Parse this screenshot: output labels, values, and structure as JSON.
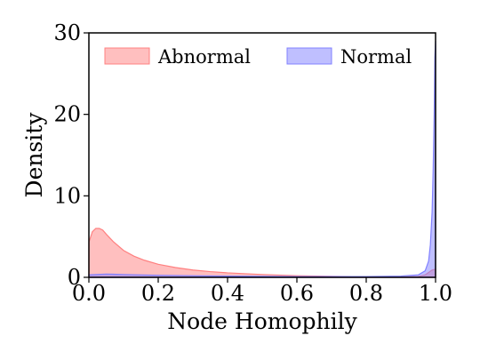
{
  "chart_data": {
    "type": "area",
    "xlabel": "Node Homophily",
    "ylabel": "Density",
    "xlim": [
      0.0,
      1.0
    ],
    "ylim": [
      0,
      30
    ],
    "xticks": [
      "0.0",
      "0.2",
      "0.4",
      "0.6",
      "0.8",
      "1.0"
    ],
    "yticks": [
      "0",
      "10",
      "20",
      "30"
    ],
    "grid": false,
    "legend": "top",
    "series": [
      {
        "name": "Abnormal",
        "color": "#ff8080",
        "x": [
          0.0,
          0.01,
          0.02,
          0.03,
          0.04,
          0.05,
          0.07,
          0.1,
          0.13,
          0.16,
          0.2,
          0.25,
          0.3,
          0.35,
          0.4,
          0.5,
          0.6,
          0.7,
          0.8,
          0.9,
          0.95,
          0.97,
          0.98,
          0.99,
          1.0
        ],
        "y": [
          4.3,
          5.6,
          6.0,
          6.0,
          5.8,
          5.3,
          4.4,
          3.3,
          2.6,
          2.1,
          1.6,
          1.2,
          0.9,
          0.7,
          0.55,
          0.35,
          0.2,
          0.12,
          0.08,
          0.05,
          0.1,
          0.3,
          0.6,
          0.9,
          1.0
        ]
      },
      {
        "name": "Normal",
        "color": "#8080ff",
        "x": [
          0.0,
          0.05,
          0.1,
          0.2,
          0.3,
          0.4,
          0.5,
          0.6,
          0.7,
          0.8,
          0.9,
          0.95,
          0.97,
          0.98,
          0.985,
          0.99,
          0.993,
          0.996,
          0.998,
          1.0
        ],
        "y": [
          0.3,
          0.4,
          0.35,
          0.25,
          0.2,
          0.15,
          0.12,
          0.1,
          0.1,
          0.1,
          0.15,
          0.3,
          0.8,
          2.0,
          4.0,
          8.0,
          13.0,
          20.0,
          27.0,
          29.0
        ]
      }
    ]
  }
}
